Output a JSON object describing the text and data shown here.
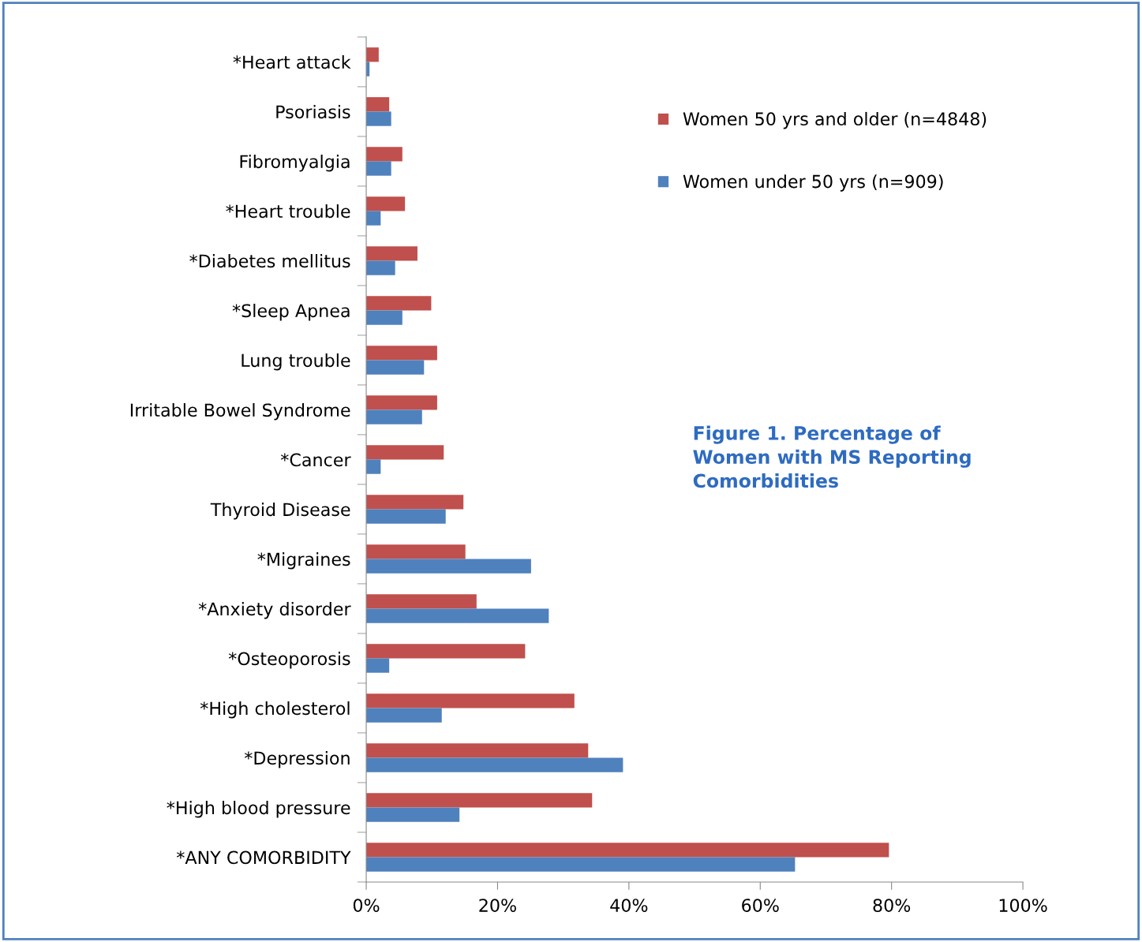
{
  "chart_data": {
    "type": "bar",
    "orientation": "horizontal",
    "title": "Figure 1. Percentage of\nWomen with MS Reporting\nComorbidities",
    "categories": [
      "*Heart attack",
      "Psoriasis",
      "Fibromyalgia",
      "*Heart trouble",
      "*Diabetes mellitus",
      "*Sleep Apnea",
      "Lung trouble",
      "Irritable Bowel Syndrome",
      "*Cancer",
      "Thyroid Disease",
      "*Migraines",
      "*Anxiety disorder",
      "*Osteoporosis",
      "*High cholesterol",
      "*Depression",
      "*High blood pressure",
      "*ANY COMORBIDITY"
    ],
    "series": [
      {
        "name": "Women 50 yrs and older (n=4848)",
        "color": "#c0504d",
        "values": [
          1.9,
          3.5,
          5.5,
          5.9,
          7.8,
          9.9,
          10.8,
          10.8,
          11.8,
          14.8,
          15.1,
          16.8,
          24.2,
          31.7,
          33.8,
          34.4,
          79.6
        ]
      },
      {
        "name": "Women under 50 yrs (n=909)",
        "color": "#4f81bd",
        "values": [
          0.5,
          3.8,
          3.8,
          2.2,
          4.4,
          5.5,
          8.8,
          8.5,
          2.2,
          12.1,
          25.1,
          27.8,
          3.5,
          11.5,
          39.1,
          14.2,
          65.3
        ]
      }
    ],
    "xlim": [
      0,
      100
    ],
    "xticks": [
      {
        "value": 0,
        "label": "0%"
      },
      {
        "value": 20,
        "label": "20%"
      },
      {
        "value": 40,
        "label": "40%"
      },
      {
        "value": 60,
        "label": "60%"
      },
      {
        "value": 80,
        "label": "80%"
      },
      {
        "value": 100,
        "label": "100%"
      }
    ],
    "grid": false,
    "legend": "top right"
  }
}
